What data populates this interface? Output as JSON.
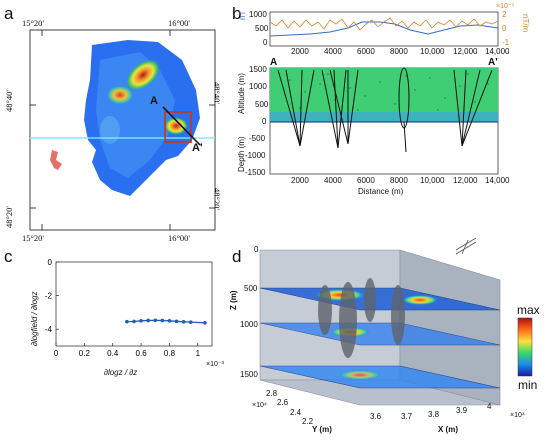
{
  "panel_a": {
    "letter": "a",
    "lon_labels": [
      "15°20'",
      "16°00'"
    ],
    "lat_labels": [
      "48°40'",
      "48°20'"
    ],
    "profile_start": "A",
    "profile_end": "A'"
  },
  "panel_b": {
    "letter": "b",
    "top_ylabel_left": "nT",
    "top_ylabel_right": "nT/m",
    "top_right_exponent": "×10⁻⁵",
    "top_left_ticks": [
      "1000",
      "500",
      "0"
    ],
    "top_right_ticks": [
      "2",
      "0",
      "-1"
    ],
    "x_ticks": [
      "2000",
      "4000",
      "6000",
      "8000",
      "10,000",
      "12,000",
      "14,000"
    ],
    "altitude_label": "Altitude (m)",
    "depth_label": "Depth (m)",
    "main_y_ticks": [
      "1500",
      "1000",
      "500",
      "0",
      "-500",
      "-1000",
      "-1500"
    ],
    "xlabel": "Distance (m)",
    "profile_start": "A",
    "profile_end": "A'",
    "field_color": "#2f6fc4",
    "gradient_color": "#d9822b"
  },
  "panel_c": {
    "letter": "c",
    "ylabel": "∂logfield / ∂logz",
    "xlabel": "∂logz / ∂z",
    "x_exponent": "×10⁻³",
    "line_color": "#1f5fb4"
  },
  "panel_d": {
    "letter": "d",
    "z_label": "Z (m)",
    "y_label": "Y (m)",
    "x_label": "X (m)",
    "z_ticks": [
      "0",
      "500",
      "1000",
      "1500"
    ],
    "y_ticks": [
      "2.8",
      "2.6",
      "2.4",
      "2.2"
    ],
    "x_ticks": [
      "3.6",
      "3.7",
      "3.8",
      "3.9",
      "4"
    ],
    "y_exponent": "×10⁴",
    "x_exponent": "×10⁴",
    "colorbar_max": "max",
    "colorbar_min": "min"
  },
  "chart_data": {
    "type": "line",
    "x": [
      0.5,
      0.55,
      0.6,
      0.65,
      0.7,
      0.75,
      0.8,
      0.85,
      0.9,
      0.95,
      1.05
    ],
    "values": [
      -3.55,
      -3.54,
      -3.5,
      -3.48,
      -3.47,
      -3.48,
      -3.5,
      -3.53,
      -3.56,
      -3.58,
      -3.62
    ],
    "xlim": [
      0,
      1.1
    ],
    "ylim": [
      -5,
      0
    ],
    "x_ticks": [
      0,
      0.2,
      0.4,
      0.6,
      0.8,
      1
    ],
    "y_ticks": [
      0,
      -2,
      -4
    ],
    "xlabel": "∂logz / ∂z",
    "ylabel": "∂logfield / ∂logz"
  }
}
